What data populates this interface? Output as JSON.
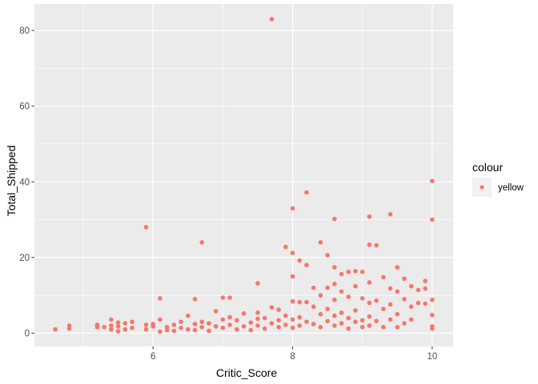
{
  "chart_data": {
    "type": "scatter",
    "title": "",
    "xlabel": "Critic_Score",
    "ylabel": "Total_Shipped",
    "xlim": [
      4.3,
      10.3
    ],
    "ylim": [
      -3.5,
      87.0
    ],
    "x_ticks": [
      6,
      8,
      10
    ],
    "y_ticks": [
      0,
      20,
      40,
      60,
      80
    ],
    "x_tick_labels": [
      "6",
      "8",
      "10"
    ],
    "y_tick_labels": [
      "0",
      "20",
      "40",
      "60",
      "80"
    ],
    "grid": true,
    "panel_background": "#ebebeb",
    "point_color": "#f8766d",
    "legend": {
      "title": "colour",
      "entries": [
        "yellow"
      ],
      "position": "right"
    },
    "series": [
      {
        "name": "yellow",
        "points": [
          [
            4.6,
            1.0
          ],
          [
            4.8,
            1.2
          ],
          [
            4.8,
            2.0
          ],
          [
            5.2,
            1.6
          ],
          [
            5.2,
            2.2
          ],
          [
            5.3,
            1.6
          ],
          [
            5.4,
            3.6
          ],
          [
            5.4,
            2.0
          ],
          [
            5.4,
            1.0
          ],
          [
            5.5,
            0.5
          ],
          [
            5.5,
            2.8
          ],
          [
            5.5,
            1.8
          ],
          [
            5.6,
            1.0
          ],
          [
            5.6,
            2.6
          ],
          [
            5.7,
            3.0
          ],
          [
            5.7,
            1.4
          ],
          [
            5.9,
            28.0
          ],
          [
            5.9,
            2.2
          ],
          [
            5.9,
            1.0
          ],
          [
            6.0,
            1.8
          ],
          [
            6.0,
            2.4
          ],
          [
            6.1,
            9.2
          ],
          [
            6.1,
            3.6
          ],
          [
            6.1,
            0.4
          ],
          [
            6.2,
            1.6
          ],
          [
            6.2,
            0.8
          ],
          [
            6.3,
            2.2
          ],
          [
            6.3,
            0.6
          ],
          [
            6.4,
            3.0
          ],
          [
            6.4,
            1.4
          ],
          [
            6.5,
            4.6
          ],
          [
            6.5,
            1.0
          ],
          [
            6.6,
            9.0
          ],
          [
            6.6,
            2.4
          ],
          [
            6.6,
            0.8
          ],
          [
            6.7,
            3.0
          ],
          [
            6.7,
            1.6
          ],
          [
            6.7,
            24.0
          ],
          [
            6.8,
            2.6
          ],
          [
            6.8,
            0.6
          ],
          [
            6.9,
            1.8
          ],
          [
            6.9,
            5.8
          ],
          [
            7.0,
            9.4
          ],
          [
            7.0,
            3.6
          ],
          [
            7.0,
            1.4
          ],
          [
            7.1,
            9.4
          ],
          [
            7.1,
            2.2
          ],
          [
            7.1,
            4.2
          ],
          [
            7.2,
            1.0
          ],
          [
            7.2,
            3.4
          ],
          [
            7.3,
            5.2
          ],
          [
            7.3,
            1.8
          ],
          [
            7.4,
            2.8
          ],
          [
            7.4,
            0.8
          ],
          [
            7.5,
            13.2
          ],
          [
            7.5,
            5.4
          ],
          [
            7.5,
            2.0
          ],
          [
            7.5,
            3.8
          ],
          [
            7.6,
            4.0
          ],
          [
            7.6,
            1.2
          ],
          [
            7.7,
            83.0
          ],
          [
            7.7,
            6.8
          ],
          [
            7.7,
            2.6
          ],
          [
            7.8,
            3.4
          ],
          [
            7.8,
            1.6
          ],
          [
            7.8,
            6.2
          ],
          [
            7.9,
            22.8
          ],
          [
            7.9,
            4.6
          ],
          [
            7.9,
            2.2
          ],
          [
            8.0,
            33.0
          ],
          [
            8.0,
            21.2
          ],
          [
            8.0,
            15.0
          ],
          [
            8.0,
            8.4
          ],
          [
            8.0,
            3.6
          ],
          [
            8.0,
            1.4
          ],
          [
            8.1,
            19.2
          ],
          [
            8.1,
            8.2
          ],
          [
            8.1,
            4.2
          ],
          [
            8.1,
            2.0
          ],
          [
            8.2,
            37.2
          ],
          [
            8.2,
            18.0
          ],
          [
            8.2,
            8.2
          ],
          [
            8.2,
            3.0
          ],
          [
            8.3,
            12.0
          ],
          [
            8.3,
            7.0
          ],
          [
            8.3,
            2.4
          ],
          [
            8.4,
            24.0
          ],
          [
            8.4,
            10.0
          ],
          [
            8.4,
            5.0
          ],
          [
            8.4,
            1.6
          ],
          [
            8.5,
            20.6
          ],
          [
            8.5,
            12.0
          ],
          [
            8.5,
            6.4
          ],
          [
            8.5,
            3.2
          ],
          [
            8.6,
            30.2
          ],
          [
            8.6,
            17.4
          ],
          [
            8.6,
            13.0
          ],
          [
            8.6,
            8.8
          ],
          [
            8.6,
            4.6
          ],
          [
            8.6,
            2.0
          ],
          [
            8.7,
            15.6
          ],
          [
            8.7,
            11.0
          ],
          [
            8.7,
            5.4
          ],
          [
            8.7,
            2.6
          ],
          [
            8.8,
            16.2
          ],
          [
            8.8,
            9.6
          ],
          [
            8.8,
            4.0
          ],
          [
            8.8,
            1.2
          ],
          [
            8.9,
            16.4
          ],
          [
            8.9,
            12.4
          ],
          [
            8.9,
            6.0
          ],
          [
            8.9,
            3.0
          ],
          [
            9.0,
            16.2
          ],
          [
            9.0,
            9.2
          ],
          [
            9.0,
            3.4
          ],
          [
            9.0,
            1.6
          ],
          [
            9.1,
            30.8
          ],
          [
            9.1,
            23.4
          ],
          [
            9.1,
            13.4
          ],
          [
            9.1,
            8.0
          ],
          [
            9.1,
            4.4
          ],
          [
            9.1,
            2.0
          ],
          [
            9.2,
            23.2
          ],
          [
            9.2,
            8.6
          ],
          [
            9.2,
            3.2
          ],
          [
            9.3,
            14.8
          ],
          [
            9.3,
            6.4
          ],
          [
            9.3,
            1.6
          ],
          [
            9.4,
            31.4
          ],
          [
            9.4,
            11.8
          ],
          [
            9.4,
            7.6
          ],
          [
            9.4,
            3.6
          ],
          [
            9.5,
            17.4
          ],
          [
            9.5,
            11.0
          ],
          [
            9.5,
            5.0
          ],
          [
            9.5,
            1.6
          ],
          [
            9.6,
            14.4
          ],
          [
            9.6,
            9.0
          ],
          [
            9.6,
            2.6
          ],
          [
            9.7,
            12.4
          ],
          [
            9.7,
            7.0
          ],
          [
            9.7,
            3.6
          ],
          [
            9.8,
            11.4
          ],
          [
            9.8,
            8.0
          ],
          [
            9.9,
            13.8
          ],
          [
            9.9,
            11.8
          ],
          [
            9.9,
            7.8
          ],
          [
            10.0,
            40.2
          ],
          [
            10.0,
            30.0
          ],
          [
            10.0,
            8.8
          ],
          [
            10.0,
            4.8
          ],
          [
            10.0,
            1.8
          ],
          [
            10.0,
            1.2
          ]
        ]
      }
    ]
  }
}
